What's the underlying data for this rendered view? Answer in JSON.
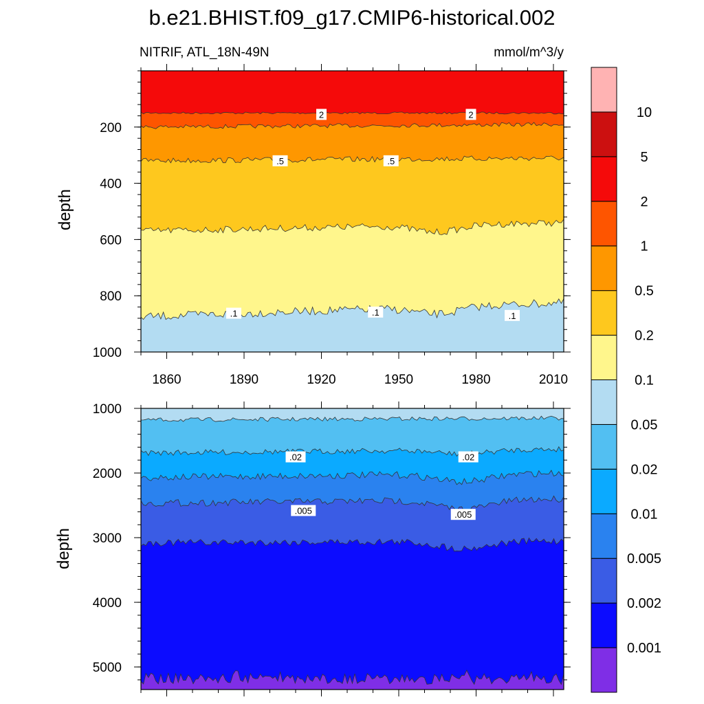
{
  "title": "b.e21.BHIST.f09_g17.CMIP6-historical.002",
  "variable_label": "NITRIF, ATL_18N-49N",
  "units_label": "mmol/m^3/y",
  "chart_data": [
    {
      "type": "contour",
      "panel": "upper",
      "xlabel": "",
      "ylabel": "depth",
      "xlim": [
        1850,
        2014
      ],
      "ylim": [
        0,
        1000
      ],
      "y_inverted": true,
      "x_ticks": [
        "1860",
        "1890",
        "1920",
        "1950",
        "1980",
        "2010"
      ],
      "y_ticks": [
        "200",
        "400",
        "600",
        "800",
        "1000"
      ],
      "boundaries": [
        {
          "level": 2,
          "depth_start": 150,
          "depth_end": 150
        },
        {
          "level": 1,
          "depth_start": 200,
          "depth_end": 190
        },
        {
          "level": 0.5,
          "depth_start": 320,
          "depth_end": 310
        },
        {
          "level": 0.2,
          "depth_start": 570,
          "depth_end": 540
        },
        {
          "level": 0.1,
          "depth_start": 875,
          "depth_end": 825
        }
      ],
      "contour_labels": [
        {
          "text": "2",
          "year": 1920,
          "depth": 155
        },
        {
          "text": "2",
          "year": 1978,
          "depth": 155
        },
        {
          "text": ".5",
          "year": 1904,
          "depth": 320
        },
        {
          "text": ".5",
          "year": 1947,
          "depth": 320
        },
        {
          "text": ".1",
          "year": 1886,
          "depth": 862
        },
        {
          "text": ".1",
          "year": 1941,
          "depth": 858
        },
        {
          "text": ".1",
          "year": 1994,
          "depth": 870
        }
      ]
    },
    {
      "type": "contour",
      "panel": "lower",
      "xlabel": "",
      "ylabel": "depth",
      "xlim": [
        1850,
        2014
      ],
      "ylim": [
        1000,
        5350
      ],
      "y_inverted": true,
      "x_ticks": [],
      "y_ticks": [
        "1000",
        "2000",
        "3000",
        "4000",
        "5000"
      ],
      "boundaries": [
        {
          "level": 0.05,
          "depth_start": 1180,
          "depth_end": 1150
        },
        {
          "level": 0.02,
          "depth_start": 1690,
          "depth_end": 1630
        },
        {
          "level": 0.01,
          "depth_start": 2070,
          "depth_end": 2000
        },
        {
          "level": 0.005,
          "depth_start": 2470,
          "depth_end": 2400
        },
        {
          "level": 0.002,
          "depth_start": 3080,
          "depth_end": 3050
        },
        {
          "level": 0.001,
          "depth_start": 5180,
          "depth_end": 5190
        }
      ],
      "contour_labels": [
        {
          "text": ".02",
          "year": 1910,
          "depth": 1750
        },
        {
          "text": ".02",
          "year": 1977,
          "depth": 1750
        },
        {
          "text": ".005",
          "year": 1913,
          "depth": 2580
        },
        {
          "text": ".005",
          "year": 1975,
          "depth": 2640
        }
      ]
    }
  ],
  "colorbar": {
    "colors": [
      "#7f2ee6",
      "#0c0cff",
      "#3a5ce5",
      "#2a82ef",
      "#0baaff",
      "#52bff2",
      "#b3dcf2",
      "#fff68c",
      "#fec81e",
      "#fe9700",
      "#fe5500",
      "#f50a0a",
      "#cc1010",
      "#ffb3b3"
    ],
    "labels": [
      "0.001",
      "0.002",
      "0.005",
      "0.01",
      "0.02",
      "0.05",
      "0.1",
      "0.2",
      "0.5",
      "1",
      "2",
      "5",
      "10"
    ]
  }
}
